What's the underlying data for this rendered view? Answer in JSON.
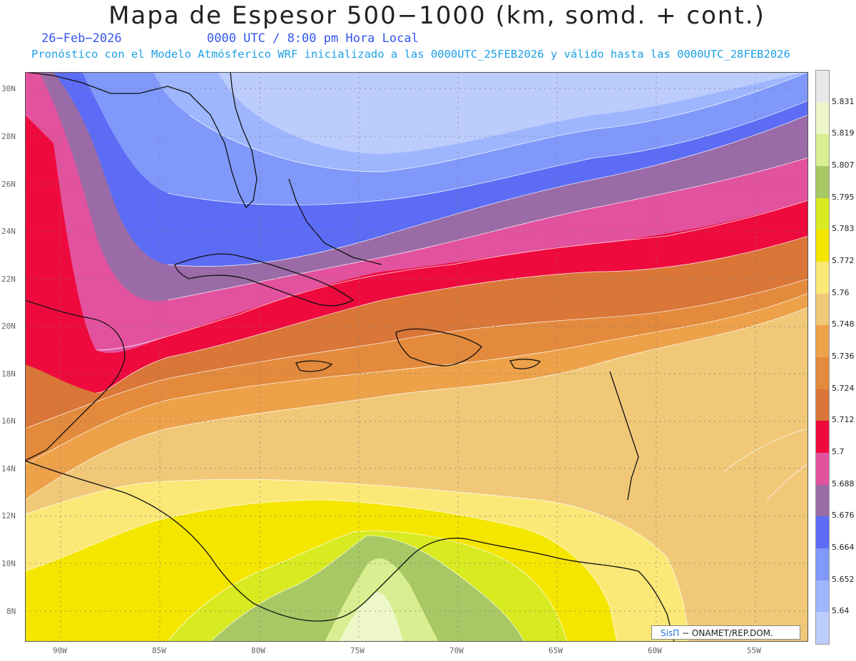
{
  "header": {
    "title": "Mapa de Espesor 500−1000 (km, somd. + cont.)",
    "date": "26−Feb−2026",
    "time": "0000 UTC / 8:00 pm Hora Local",
    "subtitle": "Pronóstico con el Modelo Atmósferico WRF inicializado a las 0000UTC_25FEB2026 y válido hasta las  0000UTC_28FEB2026"
  },
  "map": {
    "lat_labels": [
      "30N",
      "28N",
      "26N",
      "24N",
      "22N",
      "20N",
      "18N",
      "16N",
      "14N",
      "12N",
      "10N",
      "8N"
    ],
    "lon_labels": [
      "90W",
      "85W",
      "80W",
      "75W",
      "70W",
      "65W",
      "60W",
      "55W"
    ]
  },
  "colorbar": {
    "labels": [
      "5.831",
      "5.819",
      "5.807",
      "5.795",
      "5.783",
      "5.772",
      "5.76",
      "5.748",
      "5.736",
      "5.724",
      "5.712",
      "5.7",
      "5.688",
      "5.676",
      "5.664",
      "5.652",
      "5.64"
    ],
    "colors": [
      "#e8e8e8",
      "#eef7c8",
      "#d8ee90",
      "#a8c865",
      "#d8ea20",
      "#f5e600",
      "#fbe877",
      "#f0c878",
      "#eda24a",
      "#e38a3c",
      "#d97638",
      "#ef0a3e",
      "#e3529e",
      "#9b6ba7",
      "#5c6cf4",
      "#7f98fa",
      "#9eb6fd",
      "#bcccfd"
    ]
  },
  "credit": {
    "brand": "SisΠ",
    "text": "− ONAMET/REP.DOM."
  }
}
